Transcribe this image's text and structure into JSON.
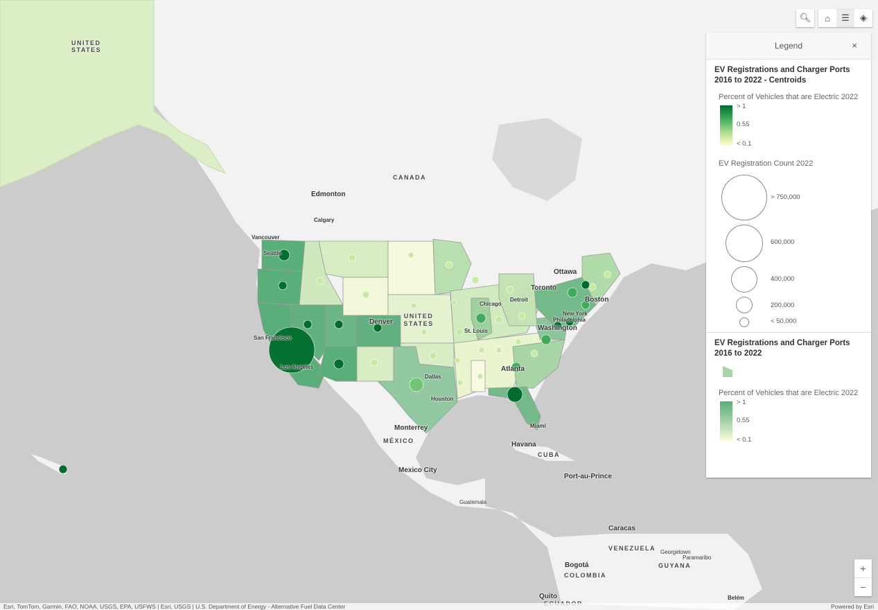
{
  "map": {
    "labels": {
      "alaska_country": "UNITED STATES",
      "canada": "CANADA",
      "us": "UNITED STATES",
      "mexico": "MÉXICO",
      "cuba": "CUBA",
      "venezuela": "VENEZUELA",
      "colombia": "COLOMBIA",
      "guyana": "GUYANA",
      "ecuador": "ECUADOR",
      "guatemala": "Guatemala",
      "edmonton": "Edmonton",
      "calgary": "Calgary",
      "vancouver": "Vancouver",
      "seattle": "Seattle",
      "san_francisco": "San Francisco",
      "los_angeles": "Los Angeles",
      "denver": "Denver",
      "dallas": "Dallas",
      "houston": "Houston",
      "st_louis": "St. Louis",
      "chicago": "Chicago",
      "detroit": "Detroit",
      "toronto": "Toronto",
      "ottawa": "Ottawa",
      "boston": "Boston",
      "new_york": "New York",
      "philadelphia": "Philadelphia",
      "washington": "Washington",
      "atlanta": "Atlanta",
      "miami": "Miami",
      "monterrey": "Monterrey",
      "mexico_city": "Mexico City",
      "havana": "Havana",
      "port_au_prince": "Port-au-Prince",
      "caracas": "Caracas",
      "georgetown": "Georgetown",
      "paramaribo": "Paramaribo",
      "bogota": "Bogotá",
      "quito": "Quito",
      "belem": "Belém"
    },
    "colors": {
      "ocean": "#cccccc",
      "land": "#f2f2f2",
      "dark_green": "#006d2c",
      "mid_green": "#41ab5d",
      "light": "#f7fcb9"
    }
  },
  "toolbar": {
    "search_icon": "search-icon",
    "home_icon": "home-icon",
    "legend_icon": "legend-list-icon",
    "layers_icon": "layers-icon"
  },
  "legend": {
    "title": "Legend",
    "close": "×",
    "sections": [
      {
        "title": "EV Registrations and Charger Ports 2016 to 2022 - Centroids",
        "color_field": "Percent of Vehicles that are Electric 2022",
        "color_stops": [
          "> 1",
          "0.55",
          "< 0.1"
        ],
        "size_field": "EV Registration Count 2022",
        "size_stops": [
          "> 750,000",
          "600,000",
          "400,000",
          "200,000",
          "< 50,000"
        ]
      },
      {
        "title": "EV Registrations and Charger Ports 2016 to 2022",
        "color_field": "Percent of Vehicles that are Electric 2022",
        "color_stops": [
          "> 1",
          "0.55",
          "< 0.1"
        ]
      }
    ]
  },
  "zoom": {
    "in": "+",
    "out": "−"
  },
  "attribution": {
    "sources": "Esri, TomTom, Garmin, FAO, NOAA, USGS, EPA, USFWS | Esri, USGS | U.S. Department of Energy - Alternative Fuel Data Center",
    "powered_by": "Powered by Esri"
  }
}
